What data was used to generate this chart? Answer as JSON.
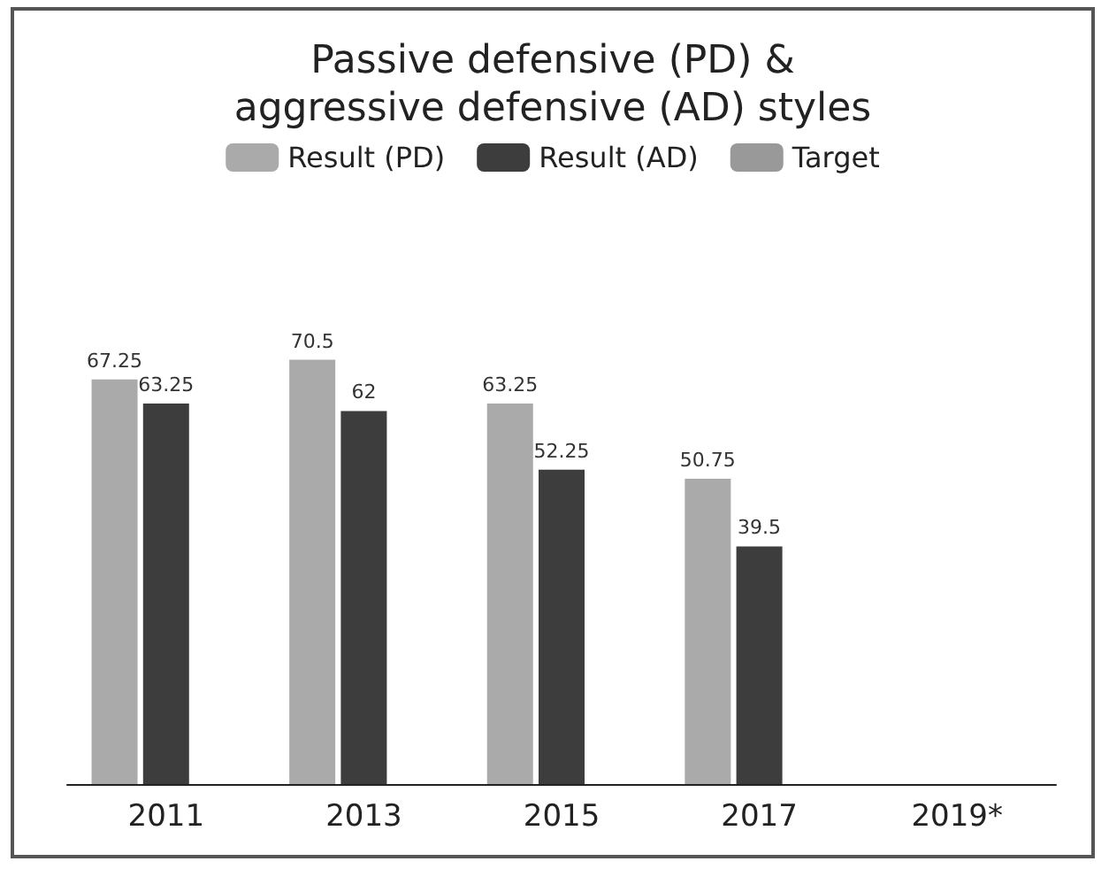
{
  "chart_data": {
    "type": "bar",
    "title": "Passive defensive (PD) &\naggressive defensive (AD) styles",
    "categories": [
      "2011",
      "2013",
      "2015",
      "2017",
      "2019*"
    ],
    "series": [
      {
        "name": "Result (PD)",
        "color": "#aaaaaa",
        "values": [
          67.25,
          70.5,
          63.25,
          50.75,
          null
        ]
      },
      {
        "name": "Result (AD)",
        "color": "#3d3d3d",
        "values": [
          63.25,
          62,
          52.25,
          39.5,
          null
        ]
      },
      {
        "name": "Target",
        "color": "#999999",
        "values": [
          null,
          null,
          null,
          null,
          null
        ]
      }
    ],
    "data_labels": true,
    "legend": "top"
  }
}
